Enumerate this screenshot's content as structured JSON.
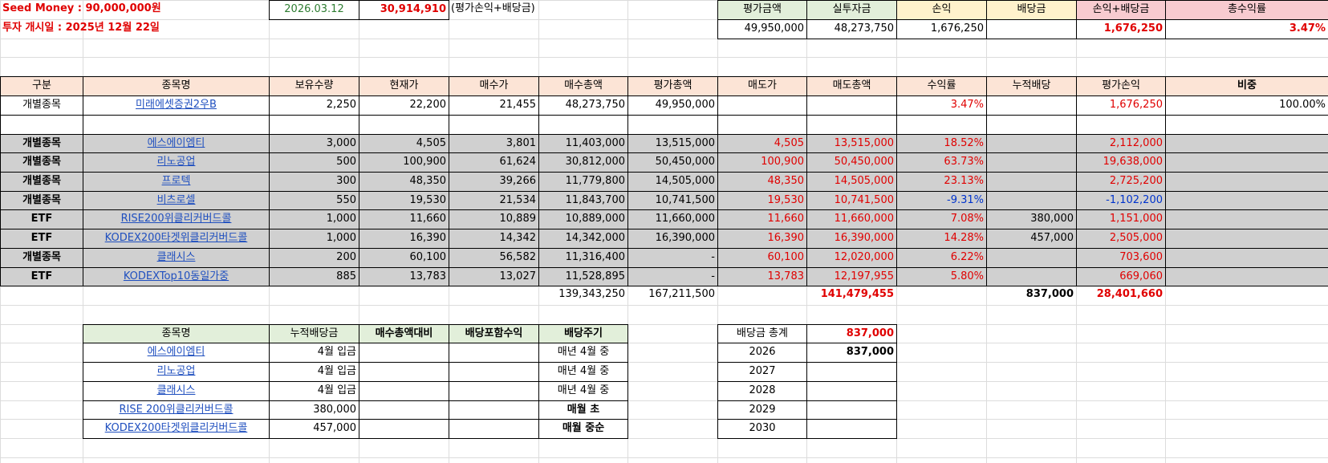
{
  "top": {
    "seed_money": "Seed Money : 90,000,000원",
    "start_date": "투자 개시일 : 2025년 12월 22일",
    "date": "2026.03.12",
    "value": "30,914,910",
    "note": "(평가손익+배당금)"
  },
  "summary": {
    "headers": [
      "평가금액",
      "실투자금",
      "손익",
      "배당금",
      "손익+배당금",
      "총수익률"
    ],
    "values": [
      "49,950,000",
      "48,273,750",
      "1,676,250",
      "",
      "1,676,250",
      "3.47%"
    ]
  },
  "table": {
    "headers": [
      "구분",
      "종목명",
      "보유수량",
      "현재가",
      "매수가",
      "매수총액",
      "평가총액",
      "매도가",
      "매도총액",
      "수익률",
      "누적배당",
      "평가손익",
      "비중"
    ],
    "current_row": [
      "개별종목",
      "미래에셋증권2우B",
      "2,250",
      "22,200",
      "21,455",
      "48,273,750",
      "49,950,000",
      "",
      "",
      "3.47%",
      "",
      "1,676,250",
      "100.00%"
    ],
    "sold_rows": [
      [
        "개별종목",
        "에스에이엠티",
        "3,000",
        "4,505",
        "3,801",
        "11,403,000",
        "13,515,000",
        "4,505",
        "13,515,000",
        "18.52%",
        "",
        "2,112,000",
        ""
      ],
      [
        "개별종목",
        "리노공업",
        "500",
        "100,900",
        "61,624",
        "30,812,000",
        "50,450,000",
        "100,900",
        "50,450,000",
        "63.73%",
        "",
        "19,638,000",
        ""
      ],
      [
        "개별종목",
        "프로텍",
        "300",
        "48,350",
        "39,266",
        "11,779,800",
        "14,505,000",
        "48,350",
        "14,505,000",
        "23.13%",
        "",
        "2,725,200",
        ""
      ],
      [
        "개별종목",
        "비츠로셀",
        "550",
        "19,530",
        "21,534",
        "11,843,700",
        "10,741,500",
        "19,530",
        "10,741,500",
        "-9.31%",
        "",
        "-1,102,200",
        ""
      ],
      [
        "ETF",
        "RISE200위클리커버드콜",
        "1,000",
        "11,660",
        "10,889",
        "10,889,000",
        "11,660,000",
        "11,660",
        "11,660,000",
        "7.08%",
        "380,000",
        "1,151,000",
        ""
      ],
      [
        "ETF",
        "KODEX200타겟위클리커버드콜",
        "1,000",
        "16,390",
        "14,342",
        "14,342,000",
        "16,390,000",
        "16,390",
        "16,390,000",
        "14.28%",
        "457,000",
        "2,505,000",
        ""
      ],
      [
        "개별종목",
        "클래시스",
        "200",
        "60,100",
        "56,582",
        "11,316,400",
        "-",
        "60,100",
        "12,020,000",
        "6.22%",
        "",
        "703,600",
        ""
      ],
      [
        "ETF",
        "KODEXTop10동일가중",
        "885",
        "13,783",
        "13,027",
        "11,528,895",
        "-",
        "13,783",
        "12,197,955",
        "5.80%",
        "",
        "669,060",
        ""
      ]
    ],
    "totals": [
      "139,343,250",
      "167,211,500",
      "141,479,455",
      "837,000",
      "28,401,660"
    ]
  },
  "dividend_table": {
    "headers": [
      "종목명",
      "누적배당금",
      "매수총액대비",
      "배당포함수익",
      "배당주기"
    ],
    "rows": [
      [
        "에스에이엠티",
        "4월 입금",
        "",
        "",
        "매년 4월 중"
      ],
      [
        "리노공업",
        "4월 입금",
        "",
        "",
        "매년 4월 중"
      ],
      [
        "클래시스",
        "4월 입금",
        "",
        "",
        "매년 4월 중"
      ],
      [
        "RISE 200위클리커버드콜",
        "380,000",
        "",
        "",
        "매월 초"
      ],
      [
        "KODEX200타겟위클리커버드콜",
        "457,000",
        "",
        "",
        "매월 중순"
      ]
    ]
  },
  "dividend_summary": {
    "label": "배당금 총계",
    "total": "837,000",
    "years": [
      "2026",
      "2027",
      "2028",
      "2029",
      "2030"
    ],
    "amounts": [
      "837,000",
      "",
      "",
      "",
      ""
    ]
  },
  "colors": {
    "header_bg": "#fce4d6",
    "sold_row_bg": "#d0d0d0",
    "green_header": "#e2efda",
    "cream_header": "#fff2cc",
    "pink_header": "#f8cbd0",
    "positive": "#e00000",
    "negative": "#0033cc",
    "link": "#1f4fbf"
  }
}
